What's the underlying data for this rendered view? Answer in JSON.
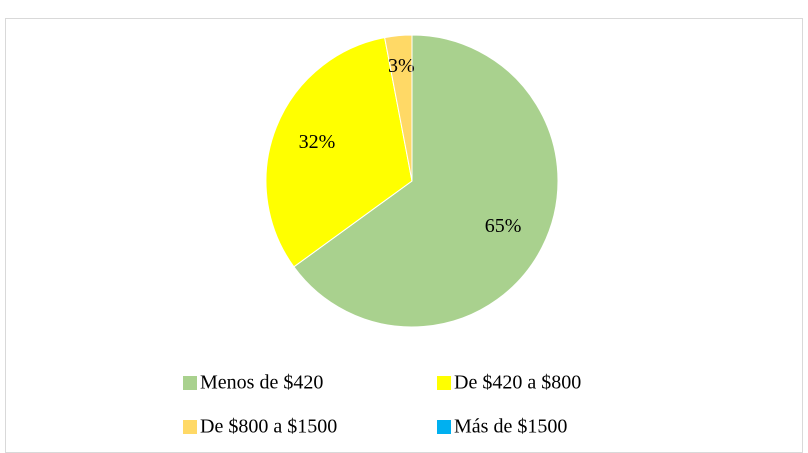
{
  "chart_data": {
    "type": "pie",
    "categories": [
      "Menos de $420",
      "De $420 a $800",
      "De $800 a $1500",
      "Más de $1500"
    ],
    "values": [
      65,
      32,
      3,
      0
    ],
    "value_labels": [
      "65%",
      "32%",
      "3%",
      null
    ],
    "colors": [
      "#a9d18e",
      "#ffff00",
      "#ffd966",
      "#00b0f0"
    ],
    "legend": "bottom"
  }
}
